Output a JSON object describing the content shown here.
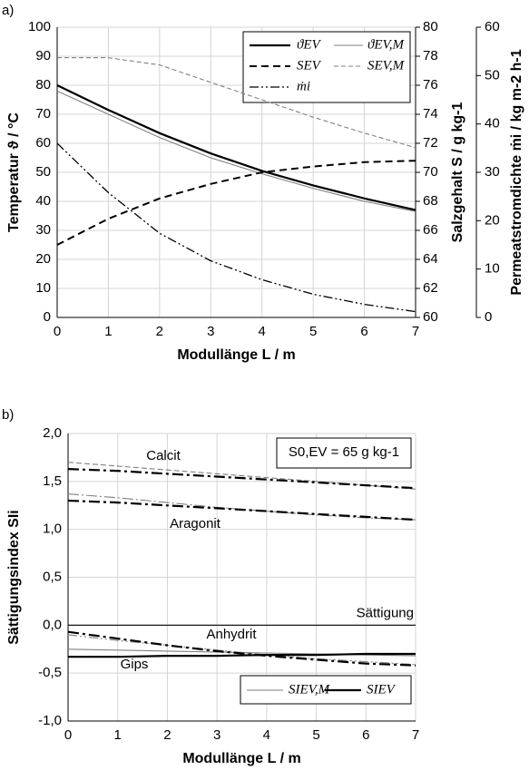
{
  "chart_data": [
    {
      "panel": "a)",
      "type": "line",
      "x": [
        0,
        1,
        2,
        3,
        4,
        5,
        6,
        7
      ],
      "xlim": [
        0,
        7
      ],
      "xticks": [
        0,
        1,
        2,
        3,
        4,
        5,
        6,
        7
      ],
      "xlabel": "Modullänge L / m",
      "ylabel": "Temperatur ϑ / °C",
      "ylim": [
        0,
        100
      ],
      "yticks": [
        0,
        10,
        20,
        30,
        40,
        50,
        60,
        70,
        80,
        90,
        100
      ],
      "y2label": "Salzgehalt S / g kg-1",
      "y2lim": [
        60,
        80
      ],
      "y2ticks": [
        60,
        62,
        64,
        66,
        68,
        70,
        72,
        74,
        76,
        78,
        80
      ],
      "y3label": "Permeatstromdichte ṁi / kg m-2 h-1",
      "y3lim": [
        0,
        60
      ],
      "y3ticks": [
        0,
        10,
        20,
        30,
        40,
        50,
        60
      ],
      "grid": true,
      "series": [
        {
          "name": "ϑEV",
          "color": "#000000",
          "values": [
            80,
            71.5,
            63.5,
            56.5,
            50.5,
            45.5,
            41,
            37
          ]
        },
        {
          "name": "ϑEV,M",
          "color": "#808080",
          "values": [
            78,
            70,
            62,
            55,
            49.5,
            44.5,
            40,
            36.5
          ]
        },
        {
          "name": "SEV",
          "color": "#000000",
          "axis": "y2",
          "values": [
            65,
            66.8,
            68.2,
            69.2,
            70,
            70.4,
            70.7,
            70.8
          ]
        },
        {
          "name": "SEV,M",
          "color": "#808080",
          "axis": "y2",
          "values": [
            77.9,
            77.9,
            77.4,
            76.2,
            75,
            73.8,
            72.7,
            71.7
          ]
        },
        {
          "name": "ṁi",
          "color": "#000000",
          "axis": "y3",
          "values": [
            36,
            25.8,
            17.4,
            11.7,
            7.8,
            4.8,
            2.7,
            1.2
          ]
        }
      ]
    },
    {
      "panel": "b)",
      "type": "line",
      "x": [
        0,
        1,
        2,
        3,
        4,
        5,
        6,
        7
      ],
      "xlim": [
        0,
        7
      ],
      "xticks": [
        0,
        1,
        2,
        3,
        4,
        5,
        6,
        7
      ],
      "xlabel": "Modullänge L / m",
      "ylabel": "Sättigungsindex SIi",
      "ylim": [
        -1,
        2
      ],
      "yticks": [
        {
          "value": -1,
          "label": "-1,0"
        },
        {
          "value": -0.5,
          "label": "-0,5"
        },
        {
          "value": 0,
          "label": "0,0"
        },
        {
          "value": 0.5,
          "label": "0,5"
        },
        {
          "value": 1,
          "label": "1,0"
        },
        {
          "value": 1.5,
          "label": "1,5"
        },
        {
          "value": 2,
          "label": "2,0"
        }
      ],
      "grid": true,
      "annotations": [
        "Calcit",
        "Aragonit",
        "Anhydrit",
        "Gips"
      ],
      "reference_line": {
        "value": 0,
        "label": "Sättigung"
      },
      "note": "S0,EV = 65 g kg-1",
      "series": [
        {
          "name": "SIEV,M",
          "color": "#808080",
          "lines": [
            [
              1.7,
              1.66,
              1.62,
              1.58,
              1.54,
              1.5,
              1.46,
              1.42
            ],
            [
              1.37,
              1.33,
              1.28,
              1.23,
              1.19,
              1.15,
              1.12,
              1.1
            ],
            [
              -0.1,
              -0.16,
              -0.21,
              -0.26,
              -0.31,
              -0.35,
              -0.38,
              -0.41
            ],
            [
              -0.25,
              -0.26,
              -0.27,
              -0.28,
              -0.29,
              -0.3,
              -0.31,
              -0.32
            ]
          ]
        },
        {
          "name": "SIEV",
          "color": "#000000",
          "lines": [
            [
              1.63,
              1.61,
              1.58,
              1.55,
              1.52,
              1.49,
              1.46,
              1.43
            ],
            [
              1.3,
              1.28,
              1.25,
              1.22,
              1.19,
              1.16,
              1.13,
              1.1
            ],
            [
              -0.07,
              -0.14,
              -0.21,
              -0.27,
              -0.32,
              -0.36,
              -0.4,
              -0.42
            ],
            [
              -0.33,
              -0.33,
              -0.32,
              -0.32,
              -0.31,
              -0.31,
              -0.3,
              -0.3
            ]
          ]
        }
      ]
    }
  ]
}
